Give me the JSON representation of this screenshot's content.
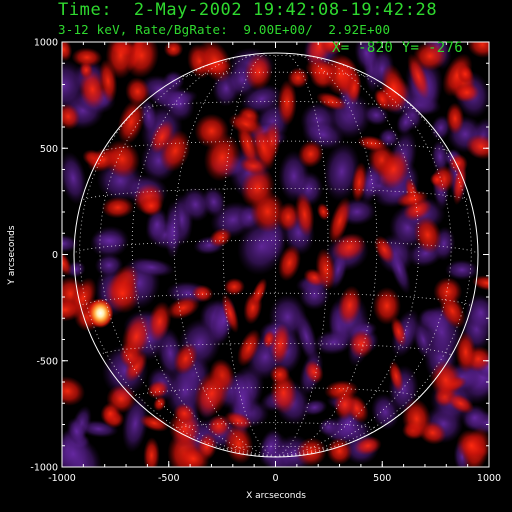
{
  "header": {
    "title": "Time:  2-May-2002 19:42:08-19:42:28",
    "subtitle": "3-12 keV, Rate/BgRate:  9.00E+00/  2.92E+00",
    "cursor": "X= -820 Y= -276"
  },
  "plot": {
    "xlabel": "X arcseconds",
    "ylabel": "Y arcseconds",
    "xlim": [
      -1000,
      1000
    ],
    "ylim": [
      -1000,
      1000
    ],
    "x_ticks": [
      "-1000",
      "-500",
      "0",
      "500",
      "1000"
    ],
    "y_ticks": [
      "1000",
      "500",
      "0",
      "-500",
      "-1000"
    ],
    "solar_radius_arcsec": 950,
    "limb_color": "#ffffff",
    "grid_color": "#ffffff",
    "colormap": [
      "#000000",
      "#5a1f8c",
      "#d4140c",
      "#ff8c3a",
      "#ffffff"
    ],
    "bright_source": {
      "x": -820,
      "y": -276
    }
  }
}
